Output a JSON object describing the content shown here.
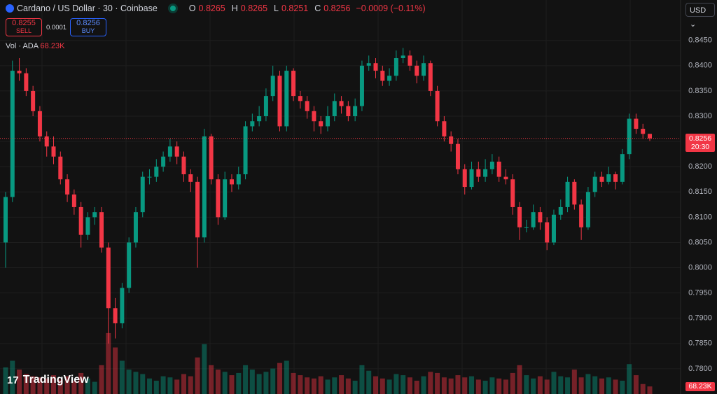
{
  "header": {
    "symbol": "Cardano / US Dollar · 30 · Coinbase",
    "o_label": "O",
    "o": "0.8265",
    "h_label": "H",
    "h": "0.8265",
    "l_label": "L",
    "l": "0.8251",
    "c_label": "C",
    "c": "0.8256",
    "change": "−0.0009 (−0.11%)",
    "sell_price": "0.8255",
    "sell": "SELL",
    "spread": "0.0001",
    "buy_price": "0.8256",
    "buy": "BUY",
    "vol_label": "Vol · ADA",
    "vol_value": "68.23K",
    "currency": "USD",
    "countdown": "20:30",
    "brand": "TradingView"
  },
  "chart_data": {
    "type": "candlestick",
    "up_color": "#089981",
    "down_color": "#f23645",
    "grid": true,
    "ylim": [
      0.775,
      0.853
    ],
    "vlim": [
      0,
      600
    ],
    "yticks": [
      {
        "value": 0.78,
        "label": "0.7800"
      },
      {
        "value": 0.785,
        "label": "0.7850"
      },
      {
        "value": 0.79,
        "label": "0.7900"
      },
      {
        "value": 0.795,
        "label": "0.7950"
      },
      {
        "value": 0.8,
        "label": "0.8000"
      },
      {
        "value": 0.805,
        "label": "0.8050"
      },
      {
        "value": 0.81,
        "label": "0.8100"
      },
      {
        "value": 0.815,
        "label": "0.8150"
      },
      {
        "value": 0.82,
        "label": "0.8200"
      },
      {
        "value": 0.825,
        "label": "0.8250"
      },
      {
        "value": 0.83,
        "label": "0.8300"
      },
      {
        "value": 0.835,
        "label": "0.8350"
      },
      {
        "value": 0.84,
        "label": "0.8400"
      },
      {
        "value": 0.845,
        "label": "0.8450"
      }
    ],
    "open": [
      0.805,
      0.814,
      0.839,
      0.8385,
      0.835,
      0.831,
      0.826,
      0.824,
      0.822,
      0.8175,
      0.8145,
      0.812,
      0.8065,
      0.81,
      0.811,
      0.804,
      0.792,
      0.789,
      0.796,
      0.805,
      0.811,
      0.818,
      0.818,
      0.82,
      0.822,
      0.824,
      0.822,
      0.8185,
      0.817,
      0.806,
      0.826,
      0.8175,
      0.81,
      0.8175,
      0.8165,
      0.8185,
      0.828,
      0.829,
      0.83,
      0.834,
      0.838,
      0.828,
      0.839,
      0.834,
      0.833,
      0.831,
      0.829,
      0.828,
      0.83,
      0.833,
      0.832,
      0.83,
      0.832,
      0.84,
      0.8405,
      0.839,
      0.837,
      0.838,
      0.8415,
      0.842,
      0.84,
      0.838,
      0.8405,
      0.835,
      0.829,
      0.826,
      0.8245,
      0.8195,
      0.816,
      0.8195,
      0.818,
      0.8195,
      0.821,
      0.818,
      0.8175,
      0.812,
      0.808,
      0.808,
      0.811,
      0.809,
      0.805,
      0.8105,
      0.812,
      0.817,
      0.8125,
      0.808,
      0.815,
      0.818,
      0.817,
      0.8185,
      0.817,
      0.8225,
      0.8295,
      0.8275,
      0.8265
    ],
    "high": [
      0.815,
      0.841,
      0.8415,
      0.8395,
      0.836,
      0.832,
      0.827,
      0.826,
      0.823,
      0.8185,
      0.8155,
      0.813,
      0.811,
      0.812,
      0.812,
      0.805,
      0.794,
      0.797,
      0.806,
      0.812,
      0.819,
      0.8195,
      0.8215,
      0.823,
      0.8255,
      0.825,
      0.823,
      0.8195,
      0.818,
      0.8275,
      0.8265,
      0.8185,
      0.819,
      0.8185,
      0.82,
      0.829,
      0.8305,
      0.832,
      0.8355,
      0.84,
      0.839,
      0.84,
      0.8395,
      0.835,
      0.834,
      0.832,
      0.83,
      0.832,
      0.8345,
      0.834,
      0.833,
      0.8335,
      0.841,
      0.842,
      0.8415,
      0.84,
      0.8395,
      0.843,
      0.8435,
      0.843,
      0.841,
      0.842,
      0.841,
      0.836,
      0.83,
      0.827,
      0.8255,
      0.8205,
      0.821,
      0.821,
      0.8215,
      0.8225,
      0.822,
      0.8195,
      0.8185,
      0.813,
      0.8095,
      0.8125,
      0.812,
      0.81,
      0.8115,
      0.8135,
      0.818,
      0.8175,
      0.8135,
      0.816,
      0.819,
      0.819,
      0.82,
      0.819,
      0.8235,
      0.8305,
      0.8305,
      0.8285,
      0.8265
    ],
    "low": [
      0.8,
      0.813,
      0.837,
      0.834,
      0.83,
      0.825,
      0.822,
      0.8205,
      0.8165,
      0.813,
      0.8105,
      0.804,
      0.8055,
      0.8085,
      0.803,
      0.785,
      0.786,
      0.788,
      0.795,
      0.804,
      0.81,
      0.8165,
      0.817,
      0.819,
      0.821,
      0.8205,
      0.817,
      0.815,
      0.8,
      0.805,
      0.8165,
      0.8085,
      0.8095,
      0.815,
      0.8155,
      0.8175,
      0.827,
      0.828,
      0.829,
      0.833,
      0.827,
      0.827,
      0.833,
      0.8315,
      0.8295,
      0.827,
      0.8265,
      0.827,
      0.829,
      0.8305,
      0.829,
      0.829,
      0.831,
      0.839,
      0.8375,
      0.836,
      0.836,
      0.837,
      0.8405,
      0.839,
      0.8365,
      0.837,
      0.834,
      0.828,
      0.825,
      0.823,
      0.8185,
      0.8145,
      0.8155,
      0.817,
      0.817,
      0.8185,
      0.817,
      0.8165,
      0.8105,
      0.8055,
      0.807,
      0.8075,
      0.8075,
      0.8035,
      0.8045,
      0.8095,
      0.811,
      0.8115,
      0.8055,
      0.8075,
      0.814,
      0.816,
      0.8165,
      0.8155,
      0.8165,
      0.8215,
      0.8265,
      0.8255,
      0.8251
    ],
    "close": [
      0.814,
      0.839,
      0.8385,
      0.835,
      0.831,
      0.826,
      0.824,
      0.822,
      0.8175,
      0.8145,
      0.812,
      0.8065,
      0.81,
      0.811,
      0.804,
      0.792,
      0.789,
      0.796,
      0.805,
      0.811,
      0.818,
      0.818,
      0.82,
      0.822,
      0.824,
      0.822,
      0.8185,
      0.817,
      0.806,
      0.826,
      0.8175,
      0.81,
      0.8175,
      0.8165,
      0.8185,
      0.828,
      0.829,
      0.83,
      0.834,
      0.838,
      0.828,
      0.839,
      0.834,
      0.833,
      0.831,
      0.829,
      0.828,
      0.83,
      0.833,
      0.832,
      0.83,
      0.832,
      0.84,
      0.8405,
      0.839,
      0.837,
      0.838,
      0.8415,
      0.842,
      0.84,
      0.838,
      0.8405,
      0.835,
      0.829,
      0.826,
      0.8245,
      0.8195,
      0.816,
      0.8195,
      0.818,
      0.8195,
      0.821,
      0.818,
      0.8175,
      0.812,
      0.808,
      0.808,
      0.811,
      0.809,
      0.805,
      0.8105,
      0.812,
      0.817,
      0.8125,
      0.808,
      0.815,
      0.818,
      0.817,
      0.8185,
      0.817,
      0.8225,
      0.8295,
      0.8275,
      0.8265,
      0.8256
    ],
    "volume": [
      240,
      300,
      220,
      180,
      160,
      150,
      140,
      170,
      130,
      160,
      120,
      190,
      140,
      110,
      260,
      550,
      420,
      300,
      220,
      200,
      180,
      140,
      120,
      160,
      150,
      130,
      180,
      160,
      330,
      450,
      260,
      220,
      200,
      170,
      190,
      260,
      220,
      180,
      200,
      230,
      280,
      300,
      190,
      170,
      150,
      140,
      160,
      130,
      150,
      170,
      140,
      120,
      260,
      210,
      160,
      140,
      130,
      180,
      170,
      150,
      120,
      160,
      200,
      190,
      150,
      140,
      170,
      150,
      160,
      130,
      120,
      150,
      140,
      130,
      190,
      260,
      170,
      140,
      160,
      130,
      200,
      160,
      150,
      220,
      150,
      180,
      160,
      140,
      150,
      130,
      120,
      270,
      170,
      90,
      68.23
    ]
  }
}
